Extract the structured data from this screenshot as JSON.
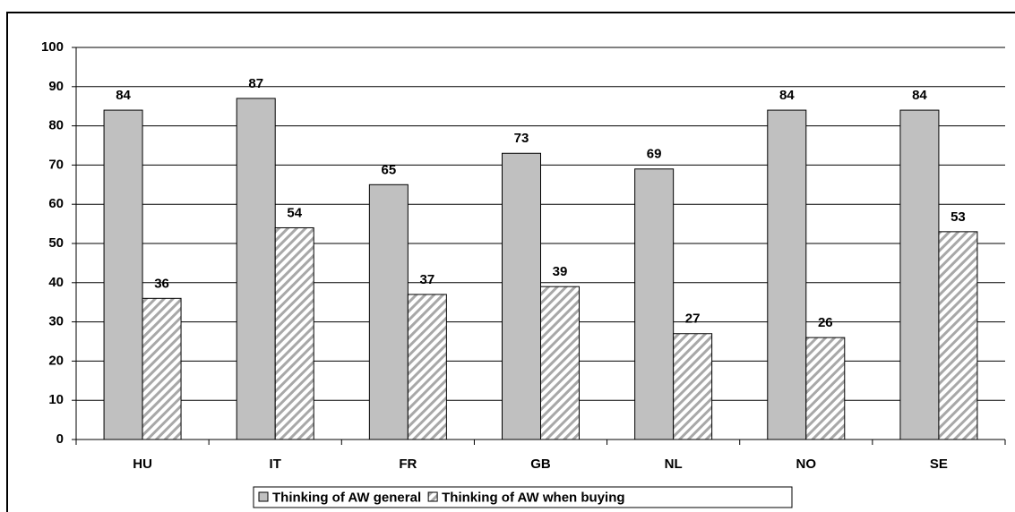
{
  "chart_data": {
    "type": "bar",
    "categories": [
      "HU",
      "IT",
      "FR",
      "GB",
      "NL",
      "NO",
      "SE"
    ],
    "series": [
      {
        "name": "Thinking of AW general",
        "color": "#c0c0c0",
        "values": [
          84,
          87,
          65,
          73,
          69,
          84,
          84
        ]
      },
      {
        "name": "Thinking of AW when buying",
        "color": "hatch",
        "values": [
          36,
          54,
          37,
          39,
          27,
          26,
          53
        ]
      }
    ],
    "ylim": [
      0,
      100
    ],
    "yticks": [
      0,
      10,
      20,
      30,
      40,
      50,
      60,
      70,
      80,
      90,
      100
    ],
    "grid": true,
    "legend": "bottom"
  }
}
